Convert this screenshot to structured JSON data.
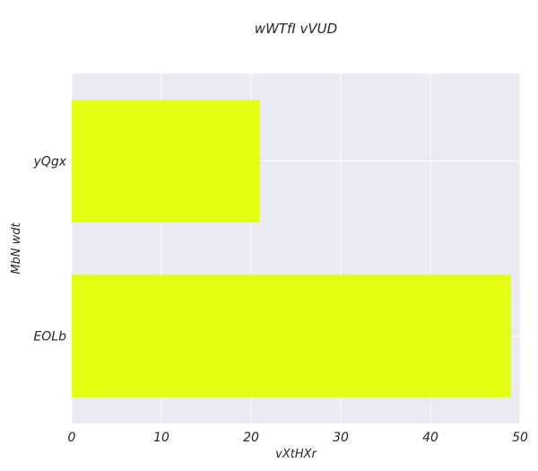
{
  "chart_data": {
    "type": "bar",
    "orientation": "horizontal",
    "title": "wWTfI  vVUD",
    "xlabel": "vXtHXr",
    "ylabel": "MbN wdt",
    "categories": [
      "yQgx",
      "EOLb"
    ],
    "values": [
      21,
      49
    ],
    "xlim": [
      0,
      50
    ],
    "xticks": [
      0,
      10,
      20,
      30,
      40,
      50
    ],
    "grid": true,
    "colors": {
      "bar": "#e5ff12",
      "plot_background": "#eaeaf2",
      "grid": "#ffffff"
    }
  }
}
